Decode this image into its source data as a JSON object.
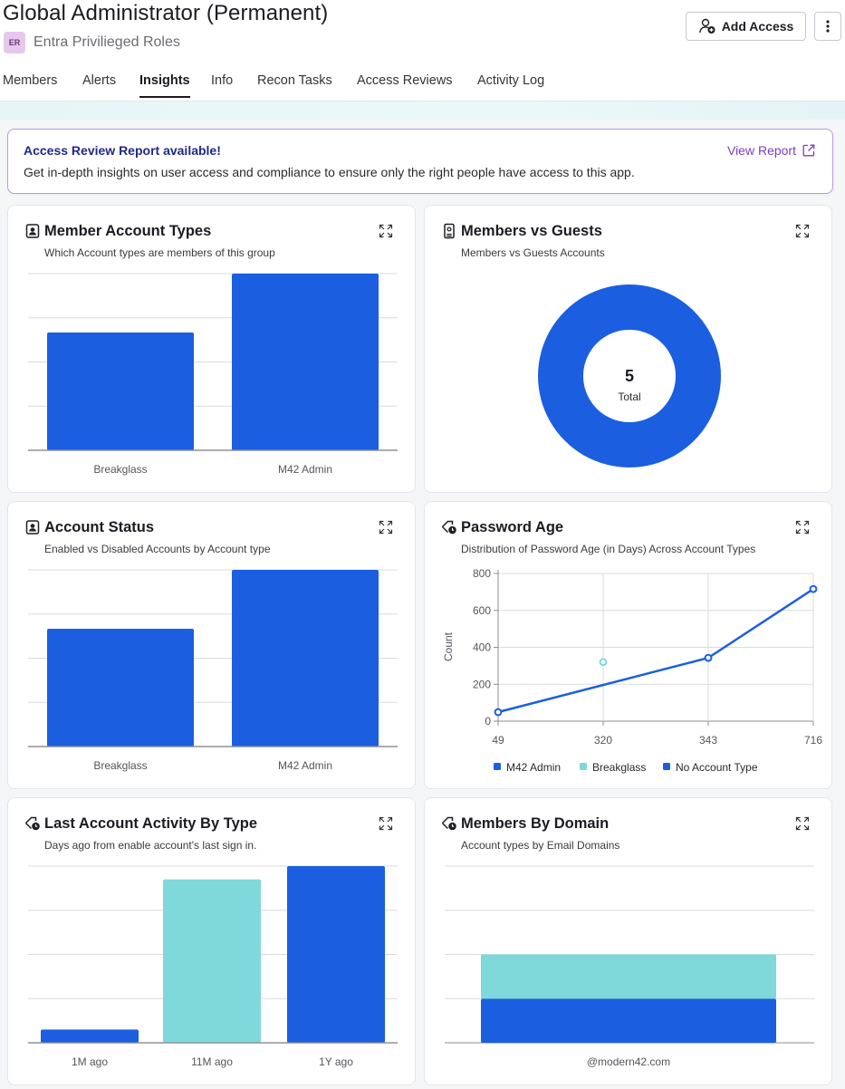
{
  "header": {
    "title": "Global Administrator (Permanent)",
    "badge": "ER",
    "subtitle": "Entra Privilieged Roles",
    "add_access_label": "Add Access"
  },
  "tabs": [
    {
      "label": "Members"
    },
    {
      "label": "Alerts"
    },
    {
      "label": "Insights",
      "active": true
    },
    {
      "label": "Info"
    },
    {
      "label": "Recon Tasks"
    },
    {
      "label": "Access Reviews"
    },
    {
      "label": "Activity Log"
    }
  ],
  "banner": {
    "title": "Access Review Report available!",
    "body": "Get in-depth insights on user access and compliance to ensure only the right people have access to this app.",
    "link": "View Report"
  },
  "colors": {
    "blue": "#1b5fe0",
    "teal": "#7fd8d9",
    "grid": "#d8dbe0"
  },
  "cards": {
    "member_account_types": {
      "title": "Member Account Types",
      "subtitle": "Which Account types are members of this group",
      "icon": "user-badge-icon"
    },
    "members_vs_guests": {
      "title": "Members vs Guests",
      "subtitle": "Members vs Guests Accounts",
      "icon": "id-card-icon",
      "total_value": "5",
      "total_label": "Total"
    },
    "account_status": {
      "title": "Account Status",
      "subtitle": "Enabled vs Disabled Accounts by Account type",
      "icon": "user-badge-icon"
    },
    "password_age": {
      "title": "Password Age",
      "subtitle": "Distribution of Password Age (in Days) Across Account Types",
      "icon": "tag-clock-icon"
    },
    "last_activity": {
      "title": "Last Account Activity By Type",
      "subtitle": "Days ago from enable account's last sign in.",
      "icon": "tag-clock-icon"
    },
    "members_by_domain": {
      "title": "Members By Domain",
      "subtitle": "Account types by Email Domains",
      "icon": "tag-clock-icon"
    }
  },
  "chart_data": [
    {
      "id": "member_account_types",
      "type": "bar",
      "categories": [
        "Breakglass",
        "M42 Admin"
      ],
      "values": [
        2,
        3
      ],
      "ylim": [
        0,
        3
      ],
      "grid": true
    },
    {
      "id": "members_vs_guests",
      "type": "pie",
      "labels": [
        "Members"
      ],
      "values": [
        5
      ],
      "total": 5
    },
    {
      "id": "account_status",
      "type": "bar",
      "categories": [
        "Breakglass",
        "M42 Admin"
      ],
      "values": [
        2,
        3
      ],
      "ylim": [
        0,
        3
      ],
      "grid": true
    },
    {
      "id": "password_age",
      "type": "line",
      "x": [
        "49",
        "320",
        "343",
        "716"
      ],
      "ylabel": "Count",
      "ylim": [
        0,
        800
      ],
      "yticks": [
        "800",
        "600",
        "400",
        "200",
        "0"
      ],
      "series": [
        {
          "name": "M42 Admin",
          "points": [
            [
              49,
              49
            ],
            [
              343,
              343
            ],
            [
              716,
              716
            ]
          ]
        },
        {
          "name": "Breakglass",
          "points": [
            [
              320,
              320
            ]
          ]
        },
        {
          "name": "No Account Type",
          "points": []
        }
      ],
      "legend": [
        "M42 Admin",
        "Breakglass",
        "No Account Type"
      ]
    },
    {
      "id": "last_activity",
      "type": "bar",
      "categories": [
        "1M ago",
        "11M ago",
        "1Y ago"
      ],
      "values": [
        0.3,
        3.7,
        4
      ],
      "ylim": [
        0,
        4
      ],
      "grid": true
    },
    {
      "id": "members_by_domain",
      "type": "bar",
      "stacked": true,
      "categories": [
        "@modern42.com"
      ],
      "series": [
        {
          "name": "M42 Admin",
          "values": [
            3
          ]
        },
        {
          "name": "Breakglass",
          "values": [
            3
          ]
        }
      ],
      "ylim": [
        0,
        12
      ],
      "grid": true
    }
  ]
}
